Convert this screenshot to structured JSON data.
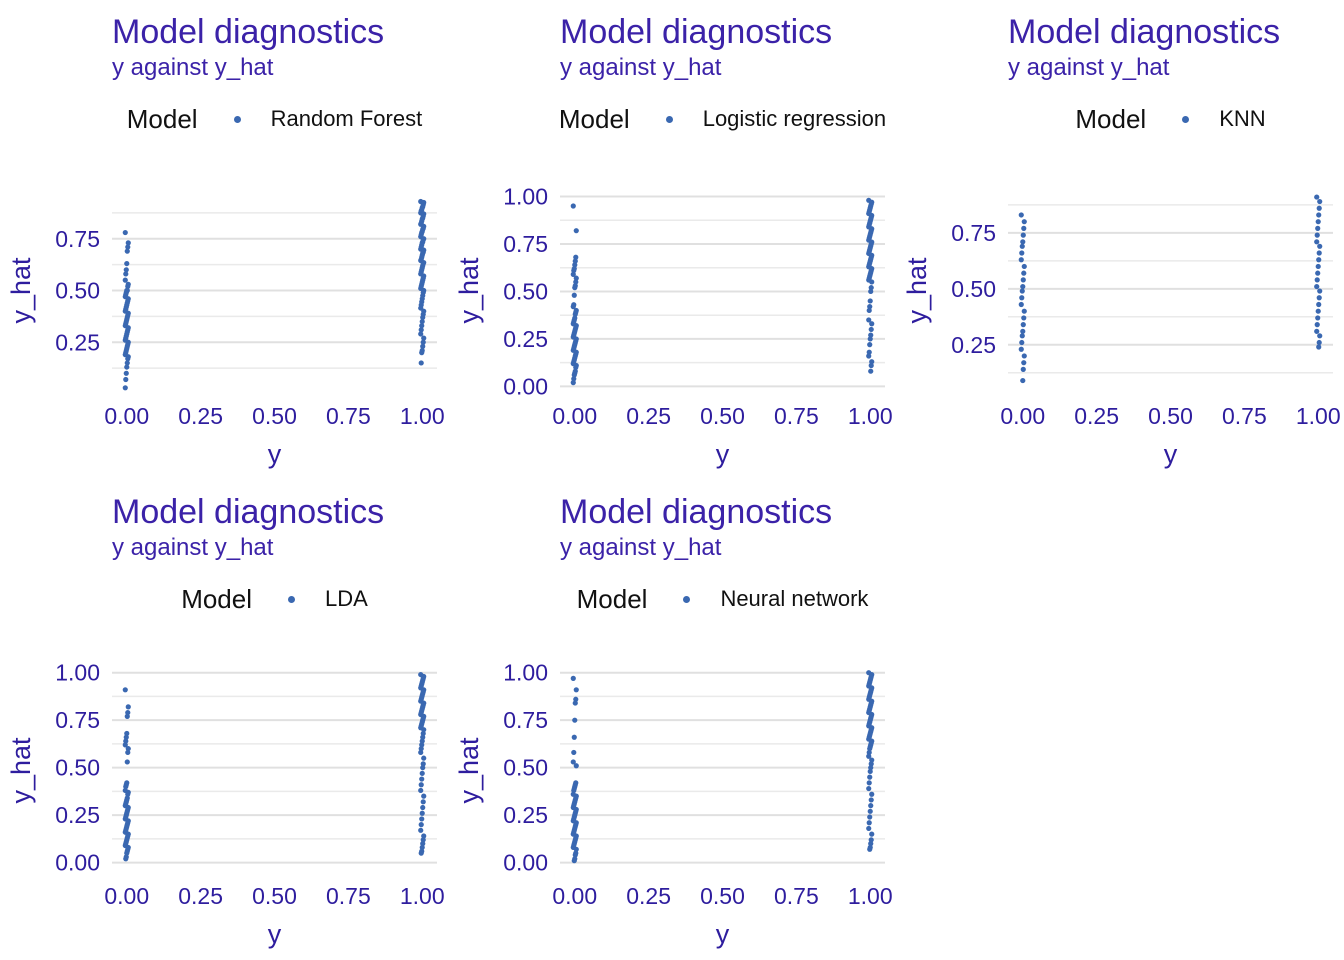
{
  "styles": {
    "title_color": "#3B22A8",
    "axis_text_color": "#2E1D9E",
    "point_color": "#3A68B1",
    "grid_major_color": "#E0E0E0",
    "grid_minor_color": "#EAEAEA",
    "legend_text_color": "#111111",
    "background": "#FFFFFF"
  },
  "chart_data": [
    {
      "type": "scatter",
      "title": "Model diagnostics",
      "subtitle": "y against y_hat",
      "legend": {
        "title": "Model",
        "entries": [
          {
            "label": "Random Forest"
          }
        ]
      },
      "xlabel": "y",
      "ylabel": "y_hat",
      "x_tick_labels": [
        "0.00",
        "0.25",
        "0.50",
        "0.75",
        "1.00"
      ],
      "x_tick_values": [
        0,
        0.25,
        0.5,
        0.75,
        1
      ],
      "y_tick_labels": [
        "0.25",
        "0.50",
        "0.75"
      ],
      "y_tick_values": [
        0.25,
        0.5,
        0.75
      ],
      "y_minor_values": [
        0.125,
        0.375,
        0.625,
        0.875
      ],
      "x_domain": [
        -0.05,
        1.05
      ],
      "y_domain": [
        0.0,
        1.0
      ],
      "grid": "horizontal-only",
      "points": {
        "y_equals_0": [
          0.78,
          0.73,
          0.71,
          0.69,
          0.63,
          0.6,
          0.58,
          0.55,
          0.53,
          0.52,
          0.5,
          0.5,
          0.49,
          0.48,
          0.47,
          0.46,
          0.45,
          0.44,
          0.43,
          0.42,
          0.41,
          0.4,
          0.39,
          0.38,
          0.37,
          0.36,
          0.35,
          0.34,
          0.33,
          0.32,
          0.31,
          0.3,
          0.29,
          0.28,
          0.27,
          0.26,
          0.25,
          0.24,
          0.23,
          0.22,
          0.21,
          0.2,
          0.19,
          0.18,
          0.17,
          0.15,
          0.13,
          0.1,
          0.07,
          0.03
        ],
        "y_equals_1": [
          0.93,
          0.925,
          0.915,
          0.905,
          0.9,
          0.89,
          0.885,
          0.875,
          0.87,
          0.86,
          0.85,
          0.845,
          0.835,
          0.825,
          0.82,
          0.81,
          0.8,
          0.795,
          0.785,
          0.78,
          0.77,
          0.76,
          0.75,
          0.745,
          0.735,
          0.73,
          0.72,
          0.71,
          0.7,
          0.695,
          0.685,
          0.68,
          0.67,
          0.66,
          0.65,
          0.645,
          0.635,
          0.63,
          0.62,
          0.61,
          0.6,
          0.59,
          0.58,
          0.57,
          0.56,
          0.55,
          0.54,
          0.53,
          0.52,
          0.51,
          0.5,
          0.49,
          0.475,
          0.46,
          0.445,
          0.43,
          0.415,
          0.4,
          0.385,
          0.37,
          0.35,
          0.33,
          0.31,
          0.29,
          0.27,
          0.25,
          0.23,
          0.21,
          0.2,
          0.15
        ]
      }
    },
    {
      "type": "scatter",
      "title": "Model diagnostics",
      "subtitle": "y against y_hat",
      "legend": {
        "title": "Model",
        "entries": [
          {
            "label": "Logistic regression"
          }
        ]
      },
      "xlabel": "y",
      "ylabel": "y_hat",
      "x_tick_labels": [
        "0.00",
        "0.25",
        "0.50",
        "0.75",
        "1.00"
      ],
      "x_tick_values": [
        0,
        0.25,
        0.5,
        0.75,
        1
      ],
      "y_tick_labels": [
        "0.00",
        "0.25",
        "0.50",
        "0.75",
        "1.00"
      ],
      "y_tick_values": [
        0,
        0.25,
        0.5,
        0.75,
        1
      ],
      "y_minor_values": [
        0.125,
        0.375,
        0.625,
        0.875
      ],
      "x_domain": [
        -0.05,
        1.05
      ],
      "y_domain": [
        -0.04,
        1.05
      ],
      "grid": "horizontal-only",
      "points": {
        "y_equals_0": [
          0.95,
          0.82,
          0.68,
          0.66,
          0.64,
          0.62,
          0.61,
          0.59,
          0.57,
          0.55,
          0.53,
          0.52,
          0.48,
          0.43,
          0.42,
          0.4,
          0.39,
          0.38,
          0.36,
          0.35,
          0.34,
          0.33,
          0.32,
          0.31,
          0.3,
          0.29,
          0.28,
          0.27,
          0.26,
          0.25,
          0.24,
          0.23,
          0.22,
          0.21,
          0.2,
          0.19,
          0.18,
          0.17,
          0.16,
          0.15,
          0.14,
          0.13,
          0.12,
          0.11,
          0.1,
          0.08,
          0.07,
          0.06,
          0.04,
          0.02
        ],
        "y_equals_1": [
          0.98,
          0.97,
          0.96,
          0.95,
          0.94,
          0.93,
          0.92,
          0.91,
          0.9,
          0.89,
          0.88,
          0.87,
          0.86,
          0.85,
          0.84,
          0.83,
          0.82,
          0.81,
          0.8,
          0.79,
          0.78,
          0.77,
          0.76,
          0.75,
          0.74,
          0.73,
          0.72,
          0.71,
          0.7,
          0.69,
          0.68,
          0.67,
          0.66,
          0.65,
          0.64,
          0.63,
          0.62,
          0.61,
          0.6,
          0.59,
          0.58,
          0.57,
          0.56,
          0.55,
          0.52,
          0.5,
          0.45,
          0.42,
          0.4,
          0.35,
          0.33,
          0.3,
          0.27,
          0.25,
          0.22,
          0.18,
          0.16,
          0.13,
          0.11,
          0.08
        ]
      }
    },
    {
      "type": "scatter",
      "title": "Model diagnostics",
      "subtitle": "y against y_hat",
      "legend": {
        "title": "Model",
        "entries": [
          {
            "label": "KNN"
          }
        ]
      },
      "xlabel": "y",
      "ylabel": "y_hat",
      "x_tick_labels": [
        "0.00",
        "0.25",
        "0.50",
        "0.75",
        "1.00"
      ],
      "x_tick_values": [
        0,
        0.25,
        0.5,
        0.75,
        1
      ],
      "y_tick_labels": [
        "0.25",
        "0.50",
        "0.75"
      ],
      "y_tick_values": [
        0.25,
        0.5,
        0.75
      ],
      "y_minor_values": [
        0.125,
        0.375,
        0.625,
        0.875
      ],
      "x_domain": [
        -0.05,
        1.05
      ],
      "y_domain": [
        0.03,
        0.955
      ],
      "grid": "horizontal-only",
      "points": {
        "y_equals_0": [
          0.83,
          0.8,
          0.77,
          0.74,
          0.71,
          0.69,
          0.66,
          0.63,
          0.6,
          0.57,
          0.54,
          0.51,
          0.49,
          0.46,
          0.43,
          0.4,
          0.37,
          0.34,
          0.31,
          0.29,
          0.26,
          0.23,
          0.2,
          0.17,
          0.14,
          0.09
        ],
        "y_equals_1": [
          0.91,
          0.89,
          0.86,
          0.83,
          0.8,
          0.77,
          0.74,
          0.71,
          0.69,
          0.66,
          0.63,
          0.6,
          0.57,
          0.54,
          0.51,
          0.49,
          0.46,
          0.43,
          0.4,
          0.37,
          0.34,
          0.31,
          0.29,
          0.26,
          0.24
        ]
      }
    },
    {
      "type": "scatter",
      "title": "Model diagnostics",
      "subtitle": "y against y_hat",
      "legend": {
        "title": "Model",
        "entries": [
          {
            "label": "LDA"
          }
        ]
      },
      "xlabel": "y",
      "ylabel": "y_hat",
      "x_tick_labels": [
        "0.00",
        "0.25",
        "0.50",
        "0.75",
        "1.00"
      ],
      "x_tick_values": [
        0,
        0.25,
        0.5,
        0.75,
        1
      ],
      "y_tick_labels": [
        "0.00",
        "0.25",
        "0.50",
        "0.75",
        "1.00"
      ],
      "y_tick_values": [
        0,
        0.25,
        0.5,
        0.75,
        1
      ],
      "y_minor_values": [
        0.125,
        0.375,
        0.625,
        0.875
      ],
      "x_domain": [
        -0.05,
        1.05
      ],
      "y_domain": [
        -0.06,
        1.03
      ],
      "grid": "horizontal-only",
      "points": {
        "y_equals_0": [
          0.91,
          0.82,
          0.79,
          0.77,
          0.68,
          0.66,
          0.64,
          0.62,
          0.6,
          0.58,
          0.53,
          0.42,
          0.41,
          0.4,
          0.38,
          0.37,
          0.36,
          0.34,
          0.33,
          0.32,
          0.31,
          0.3,
          0.29,
          0.28,
          0.27,
          0.26,
          0.25,
          0.24,
          0.23,
          0.22,
          0.21,
          0.2,
          0.19,
          0.18,
          0.17,
          0.16,
          0.15,
          0.14,
          0.13,
          0.12,
          0.11,
          0.1,
          0.09,
          0.08,
          0.07,
          0.06,
          0.05,
          0.03,
          0.02
        ],
        "y_equals_1": [
          0.99,
          0.98,
          0.97,
          0.96,
          0.95,
          0.94,
          0.93,
          0.92,
          0.91,
          0.9,
          0.89,
          0.88,
          0.87,
          0.86,
          0.85,
          0.84,
          0.83,
          0.82,
          0.81,
          0.8,
          0.79,
          0.78,
          0.77,
          0.76,
          0.75,
          0.74,
          0.73,
          0.72,
          0.71,
          0.7,
          0.68,
          0.66,
          0.64,
          0.62,
          0.6,
          0.58,
          0.55,
          0.52,
          0.5,
          0.47,
          0.44,
          0.41,
          0.38,
          0.35,
          0.32,
          0.29,
          0.26,
          0.23,
          0.2,
          0.17,
          0.14,
          0.12,
          0.1,
          0.08,
          0.06,
          0.05
        ]
      }
    },
    {
      "type": "scatter",
      "title": "Model diagnostics",
      "subtitle": "y against y_hat",
      "legend": {
        "title": "Model",
        "entries": [
          {
            "label": "Neural network"
          }
        ]
      },
      "xlabel": "y",
      "ylabel": "y_hat",
      "x_tick_labels": [
        "0.00",
        "0.25",
        "0.50",
        "0.75",
        "1.00"
      ],
      "x_tick_values": [
        0,
        0.25,
        0.5,
        0.75,
        1
      ],
      "y_tick_labels": [
        "0.00",
        "0.25",
        "0.50",
        "0.75",
        "1.00"
      ],
      "y_tick_values": [
        0,
        0.25,
        0.5,
        0.75,
        1
      ],
      "y_minor_values": [
        0.125,
        0.375,
        0.625,
        0.875
      ],
      "x_domain": [
        -0.05,
        1.05
      ],
      "y_domain": [
        -0.06,
        1.03
      ],
      "grid": "horizontal-only",
      "points": {
        "y_equals_0": [
          0.97,
          0.91,
          0.86,
          0.84,
          0.75,
          0.66,
          0.58,
          0.53,
          0.51,
          0.42,
          0.41,
          0.4,
          0.39,
          0.38,
          0.36,
          0.35,
          0.34,
          0.33,
          0.32,
          0.31,
          0.3,
          0.29,
          0.28,
          0.27,
          0.26,
          0.25,
          0.24,
          0.23,
          0.22,
          0.21,
          0.2,
          0.19,
          0.18,
          0.17,
          0.16,
          0.15,
          0.14,
          0.13,
          0.12,
          0.11,
          0.1,
          0.09,
          0.08,
          0.07,
          0.05,
          0.04,
          0.02,
          0.01
        ],
        "y_equals_1": [
          1.0,
          0.99,
          0.98,
          0.97,
          0.96,
          0.95,
          0.94,
          0.93,
          0.92,
          0.91,
          0.9,
          0.89,
          0.88,
          0.87,
          0.86,
          0.85,
          0.84,
          0.83,
          0.82,
          0.81,
          0.8,
          0.79,
          0.78,
          0.77,
          0.76,
          0.75,
          0.74,
          0.73,
          0.72,
          0.71,
          0.7,
          0.69,
          0.68,
          0.67,
          0.66,
          0.65,
          0.64,
          0.63,
          0.62,
          0.61,
          0.6,
          0.58,
          0.56,
          0.54,
          0.52,
          0.5,
          0.48,
          0.45,
          0.42,
          0.39,
          0.36,
          0.33,
          0.3,
          0.27,
          0.24,
          0.21,
          0.18,
          0.15,
          0.12,
          0.1,
          0.08,
          0.07
        ]
      }
    }
  ]
}
